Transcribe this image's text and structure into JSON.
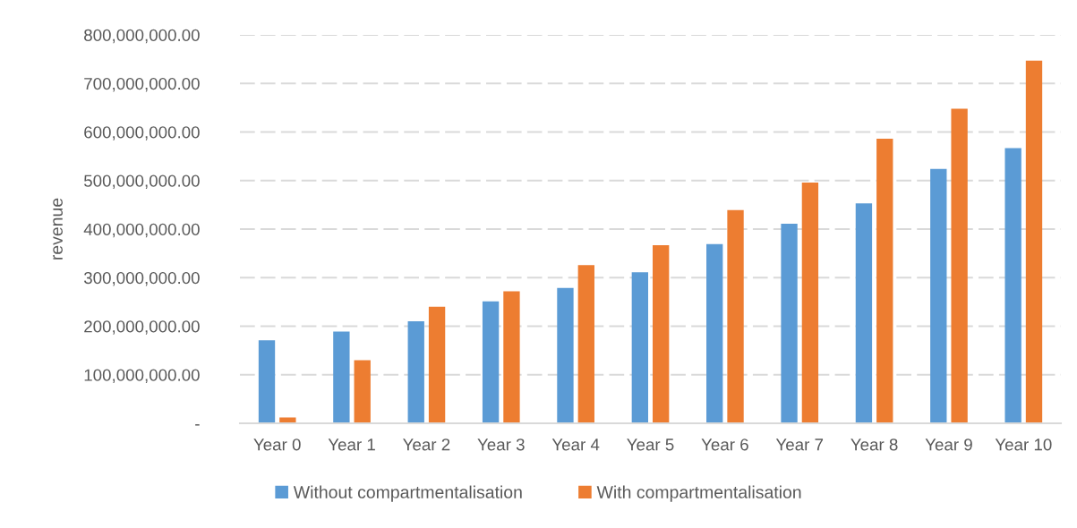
{
  "chart_data": {
    "type": "bar",
    "categories": [
      "Year 0",
      "Year 1",
      "Year 2",
      "Year 3",
      "Year 4",
      "Year 5",
      "Year 6",
      "Year 7",
      "Year 8",
      "Year 9",
      "Year 10"
    ],
    "series": [
      {
        "name": "Without compartmentalisation",
        "color": "#5b9bd5",
        "values": [
          171000000,
          189000000,
          210000000,
          251000000,
          279000000,
          311000000,
          369000000,
          411000000,
          453000000,
          524000000,
          567000000
        ]
      },
      {
        "name": "With compartmentalisation",
        "color": "#ed7d31",
        "values": [
          12000000,
          130000000,
          240000000,
          272000000,
          326000000,
          367000000,
          439000000,
          496000000,
          586000000,
          648000000,
          747000000
        ]
      }
    ],
    "ylabel": "revenue",
    "ylim": [
      0,
      800000000
    ],
    "yticks": [
      {
        "value": 0,
        "label": "-"
      },
      {
        "value": 100000000,
        "label": "100,000,000.00"
      },
      {
        "value": 200000000,
        "label": "200,000,000.00"
      },
      {
        "value": 300000000,
        "label": "300,000,000.00"
      },
      {
        "value": 400000000,
        "label": "400,000,000.00"
      },
      {
        "value": 500000000,
        "label": "500,000,000.00"
      },
      {
        "value": 600000000,
        "label": "600,000,000.00"
      },
      {
        "value": 700000000,
        "label": "700,000,000.00"
      },
      {
        "value": 800000000,
        "label": "800,000,000.00"
      }
    ],
    "grid": "y",
    "legend": "bottom"
  }
}
